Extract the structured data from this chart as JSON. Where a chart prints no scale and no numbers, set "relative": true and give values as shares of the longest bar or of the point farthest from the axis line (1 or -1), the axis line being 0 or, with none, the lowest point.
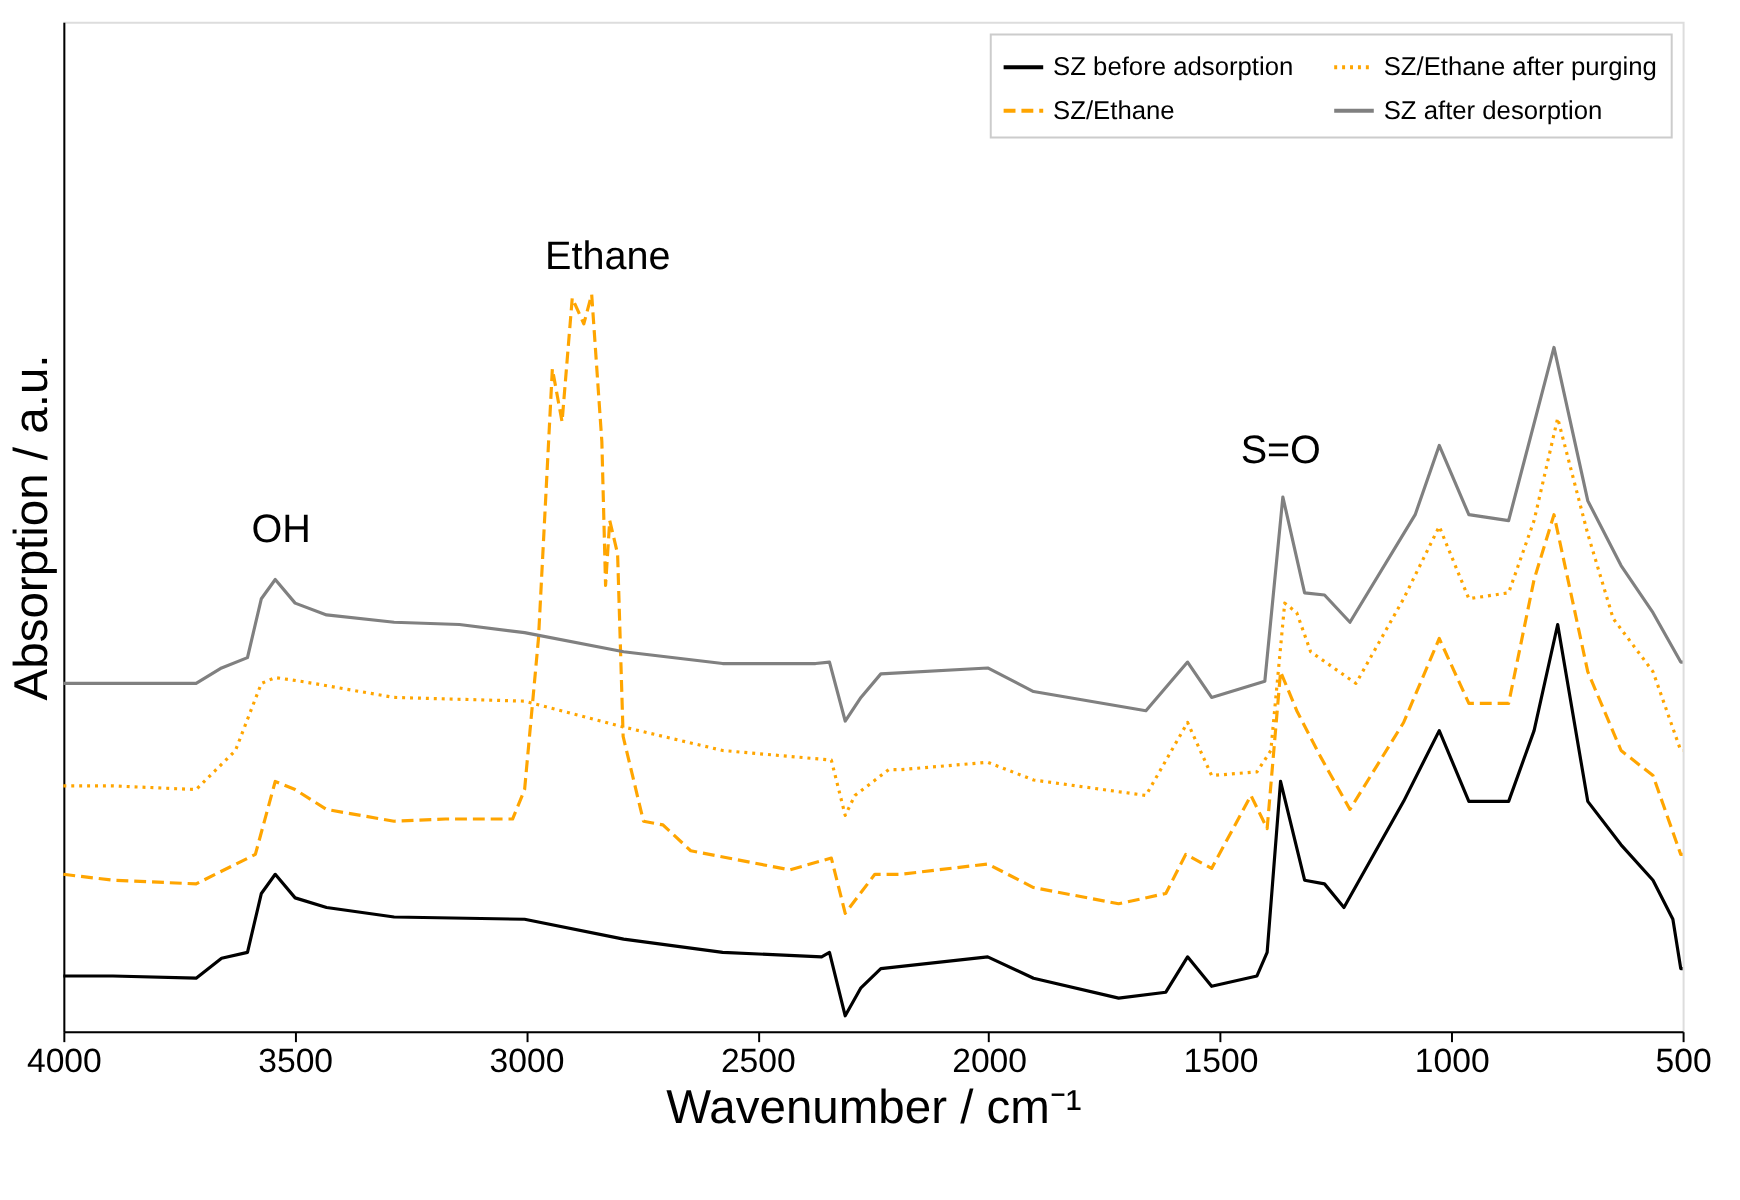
{
  "chart_data": {
    "type": "line",
    "relative": true,
    "xlabel": "Wavenumber / cm⁻¹",
    "ylabel": "Absorption / a.u.",
    "xlim": [
      4000,
      500
    ],
    "xticks": [
      4000,
      3500,
      3000,
      2500,
      2000,
      1500,
      1000,
      500
    ],
    "grid": false,
    "legend": "top right",
    "marker": "none",
    "annotations": [
      "OH",
      "Ethane",
      "S=O"
    ],
    "series": [
      {
        "name": "SZ before adsorption",
        "color": "#000000",
        "line_style": "solid",
        "x": [
          4000,
          3893,
          3713,
          3658,
          3602,
          3572,
          3542,
          3499,
          3431,
          3285,
          3003,
          2789,
          2575,
          2361,
          2344,
          2310,
          2276,
          2233,
          2002,
          1903,
          1719,
          1617,
          1570,
          1518,
          1420,
          1398,
          1369,
          1317,
          1274,
          1232,
          1103,
          1026,
          962,
          876,
          821,
          770,
          705,
          633,
          564,
          521,
          504,
          500
        ],
        "values": [
          0.075,
          0.075,
          0.072,
          0.099,
          0.107,
          0.187,
          0.213,
          0.181,
          0.168,
          0.155,
          0.152,
          0.125,
          0.107,
          0.101,
          0.107,
          0.021,
          0.059,
          0.085,
          0.101,
          0.072,
          0.045,
          0.053,
          0.101,
          0.061,
          0.075,
          0.107,
          0.339,
          0.205,
          0.2,
          0.168,
          0.312,
          0.408,
          0.312,
          0.312,
          0.408,
          0.552,
          0.312,
          0.253,
          0.205,
          0.152,
          0.085,
          0.085
        ]
      },
      {
        "name": "SZ/Ethane",
        "color": "#ffa500",
        "line_style": "dashed",
        "x": [
          4000,
          3893,
          3713,
          3585,
          3542,
          3499,
          3431,
          3285,
          3174,
          3029,
          3003,
          2973,
          2943,
          2922,
          2900,
          2875,
          2858,
          2836,
          2828,
          2819,
          2802,
          2790,
          2746,
          2704,
          2644,
          2430,
          2340,
          2310,
          2246,
          2190,
          2002,
          1903,
          1719,
          1617,
          1574,
          1518,
          1433,
          1398,
          1369,
          1334,
          1283,
          1219,
          1103,
          1026,
          962,
          876,
          821,
          778,
          705,
          633,
          564,
          504,
          500
        ],
        "values": [
          0.213,
          0.205,
          0.2,
          0.24,
          0.339,
          0.328,
          0.301,
          0.285,
          0.288,
          0.288,
          0.328,
          0.533,
          0.899,
          0.827,
          0.995,
          0.96,
          1.0,
          0.8,
          0.605,
          0.693,
          0.648,
          0.4,
          0.285,
          0.28,
          0.245,
          0.219,
          0.235,
          0.16,
          0.213,
          0.213,
          0.227,
          0.195,
          0.173,
          0.187,
          0.24,
          0.221,
          0.32,
          0.275,
          0.488,
          0.435,
          0.373,
          0.301,
          0.419,
          0.533,
          0.445,
          0.445,
          0.613,
          0.701,
          0.488,
          0.381,
          0.347,
          0.24,
          0.24
        ]
      },
      {
        "name": "SZ/Ethane after purging",
        "color": "#ffa500",
        "line_style": "dotted",
        "x": [
          4000,
          3893,
          3713,
          3628,
          3572,
          3542,
          3487,
          3285,
          3003,
          2790,
          2575,
          2340,
          2310,
          2289,
          2216,
          2190,
          2002,
          1903,
          1660,
          1570,
          1518,
          1420,
          1390,
          1360,
          1334,
          1304,
          1206,
          1103,
          1026,
          962,
          876,
          821,
          770,
          705,
          650,
          564,
          504,
          500
        ],
        "values": [
          0.333,
          0.333,
          0.328,
          0.381,
          0.472,
          0.48,
          0.475,
          0.453,
          0.448,
          0.413,
          0.381,
          0.368,
          0.293,
          0.32,
          0.355,
          0.355,
          0.365,
          0.341,
          0.32,
          0.419,
          0.347,
          0.352,
          0.381,
          0.581,
          0.568,
          0.515,
          0.472,
          0.587,
          0.685,
          0.587,
          0.595,
          0.693,
          0.832,
          0.675,
          0.56,
          0.488,
          0.381,
          0.381
        ]
      },
      {
        "name": "SZ after desorption",
        "color": "#808080",
        "line_style": "solid",
        "x": [
          4000,
          3893,
          3713,
          3658,
          3602,
          3572,
          3542,
          3499,
          3431,
          3285,
          3144,
          3003,
          2789,
          2575,
          2374,
          2344,
          2310,
          2276,
          2233,
          2002,
          1903,
          1660,
          1570,
          1518,
          1403,
          1364,
          1317,
          1274,
          1219,
          1078,
          1026,
          962,
          876,
          778,
          705,
          633,
          564,
          504,
          500
        ],
        "values": [
          0.472,
          0.472,
          0.472,
          0.493,
          0.507,
          0.587,
          0.613,
          0.581,
          0.565,
          0.555,
          0.552,
          0.541,
          0.515,
          0.499,
          0.499,
          0.501,
          0.421,
          0.453,
          0.485,
          0.493,
          0.461,
          0.435,
          0.501,
          0.453,
          0.475,
          0.725,
          0.595,
          0.592,
          0.555,
          0.701,
          0.795,
          0.701,
          0.693,
          0.928,
          0.72,
          0.632,
          0.568,
          0.501,
          0.501
        ]
      }
    ]
  }
}
